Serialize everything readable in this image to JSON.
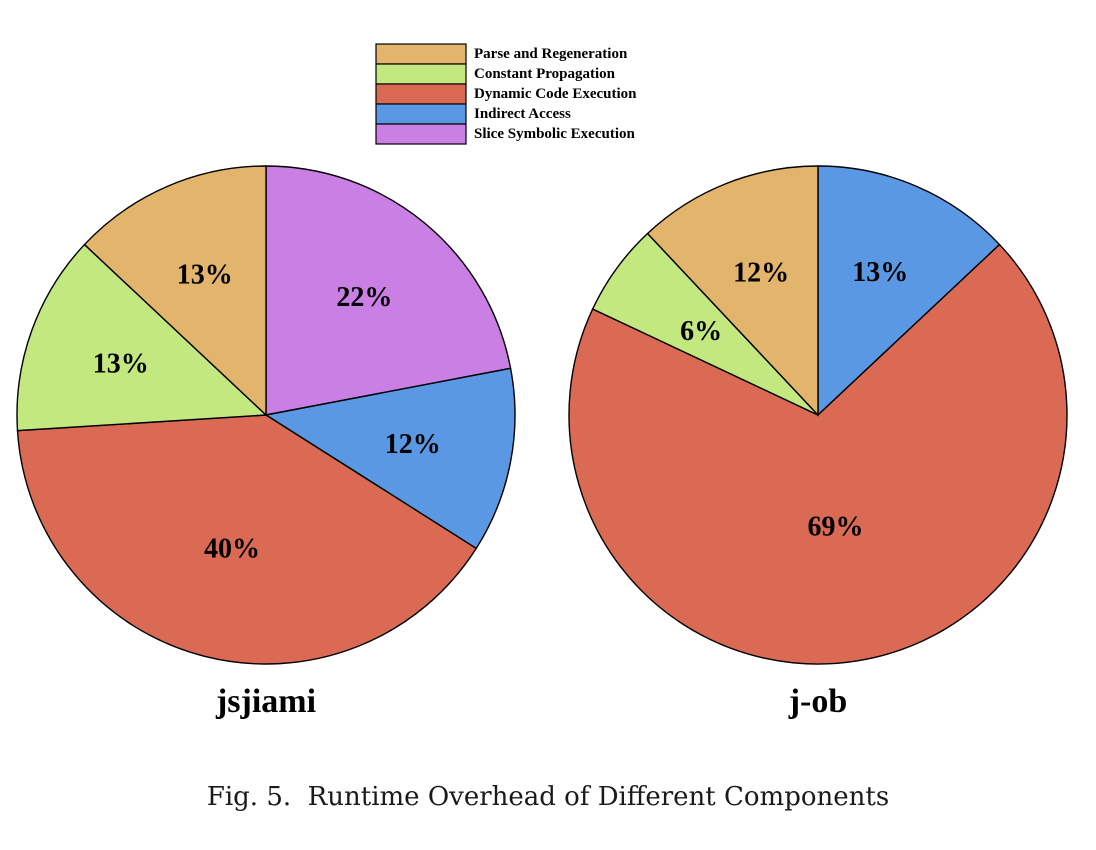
{
  "colors": {
    "Parse and Regeneration": "#E3B46B",
    "Constant Propagation": "#C2E87F",
    "Dynamic Code Execution": "#DB6A55",
    "Indirect Access": "#5A98E3",
    "Slice Symbolic Execution": "#C97FE3"
  },
  "legend": {
    "entries": [
      "Parse and Regeneration",
      "Constant Propagation",
      "Dynamic Code Execution",
      "Indirect Access",
      "Slice Symbolic Execution"
    ]
  },
  "chart_data": [
    {
      "type": "pie",
      "title": "jsjiami",
      "start_angle_deg": 0,
      "direction": "clockwise",
      "slices": [
        {
          "label": "Slice Symbolic Execution",
          "value": 22,
          "display": "22%"
        },
        {
          "label": "Indirect Access",
          "value": 12,
          "display": "12%"
        },
        {
          "label": "Dynamic Code Execution",
          "value": 40,
          "display": "40%"
        },
        {
          "label": "Constant Propagation",
          "value": 13,
          "display": "13%"
        },
        {
          "label": "Parse and Regeneration",
          "value": 13,
          "display": "13%"
        }
      ]
    },
    {
      "type": "pie",
      "title": "j-ob",
      "start_angle_deg": 0,
      "direction": "clockwise",
      "slices": [
        {
          "label": "Indirect Access",
          "value": 13,
          "display": "13%"
        },
        {
          "label": "Dynamic Code Execution",
          "value": 69,
          "display": "69%"
        },
        {
          "label": "Constant Propagation",
          "value": 6,
          "display": "6%"
        },
        {
          "label": "Parse and Regeneration",
          "value": 12,
          "display": "12%"
        }
      ]
    }
  ],
  "caption": "Fig. 5.  Runtime Overhead of Different Components"
}
